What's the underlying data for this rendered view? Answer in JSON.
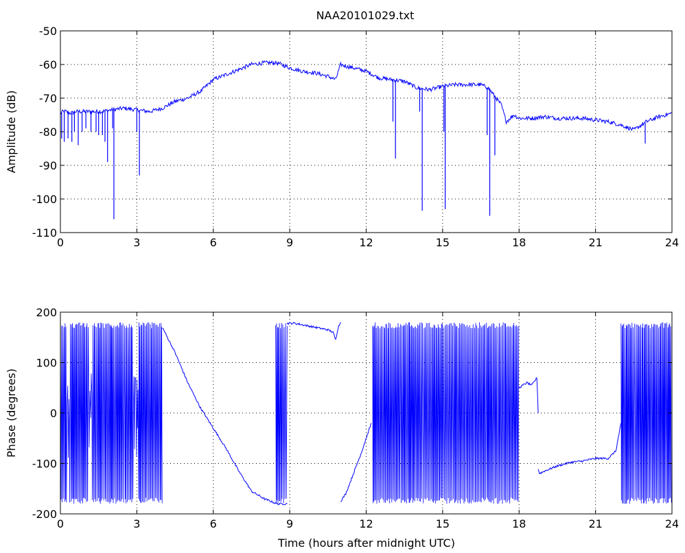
{
  "figure": {
    "title": "NAA20101029.txt",
    "xlabel": "Time (hours after midnight UTC)"
  },
  "colors": {
    "line": "#0000ff",
    "axes": "#000000",
    "grid": "#000000",
    "background": "#ffffff"
  },
  "chart_data": [
    {
      "type": "line",
      "title": "NAA20101029.txt",
      "xlabel": "",
      "ylabel": "Amplitude (dB)",
      "xlim": [
        0,
        24
      ],
      "ylim": [
        -110,
        -50
      ],
      "xticks": [
        0,
        3,
        6,
        9,
        12,
        15,
        18,
        21,
        24
      ],
      "yticks": [
        -110,
        -100,
        -90,
        -80,
        -70,
        -60,
        -50
      ],
      "grid": true,
      "series": [
        {
          "x": [
            0,
            0.1,
            0.2,
            0.4,
            0.6,
            0.8,
            1.0,
            1.3,
            1.6,
            2.0,
            2.5,
            3.0,
            3.5,
            4.0,
            4.5,
            5.0,
            5.5,
            6.0,
            6.5,
            7.0,
            7.5,
            8.0,
            8.5,
            9.0,
            9.5,
            10.0,
            10.5,
            10.8,
            11.0,
            11.2,
            11.5,
            12.0,
            12.5,
            13.0,
            13.5,
            14.0,
            14.5,
            15.0,
            15.5,
            16.0,
            16.5,
            16.8,
            17.0,
            17.3,
            17.5,
            17.8,
            18.0,
            18.5,
            19.0,
            19.5,
            20.0,
            20.5,
            21.0,
            21.5,
            22.0,
            22.5,
            23.0,
            23.5,
            24.0
          ],
          "y": [
            -74.5,
            -74,
            -74,
            -74.5,
            -74,
            -74,
            -74,
            -74,
            -74,
            -73.5,
            -73,
            -73.5,
            -74,
            -73,
            -71,
            -70,
            -68,
            -64.5,
            -63,
            -61.5,
            -60,
            -59.5,
            -59.5,
            -61,
            -62,
            -62.5,
            -63.5,
            -64.5,
            -60,
            -60.5,
            -61,
            -62,
            -64,
            -64.5,
            -65,
            -67,
            -67.5,
            -66.5,
            -66,
            -66,
            -66,
            -67,
            -69,
            -72,
            -77,
            -75,
            -76,
            -76,
            -75.5,
            -76,
            -76,
            -76,
            -76.5,
            -77,
            -78,
            -79.5,
            -77,
            -75.5,
            -74.5
          ]
        }
      ],
      "spikes": [
        {
          "x": 0.05,
          "y": -82
        },
        {
          "x": 0.15,
          "y": -83
        },
        {
          "x": 0.3,
          "y": -82
        },
        {
          "x": 0.45,
          "y": -83
        },
        {
          "x": 0.55,
          "y": -80
        },
        {
          "x": 0.7,
          "y": -84
        },
        {
          "x": 0.85,
          "y": -80
        },
        {
          "x": 1.0,
          "y": -79
        },
        {
          "x": 1.2,
          "y": -80
        },
        {
          "x": 1.4,
          "y": -80
        },
        {
          "x": 1.5,
          "y": -81
        },
        {
          "x": 1.65,
          "y": -81
        },
        {
          "x": 1.75,
          "y": -83
        },
        {
          "x": 1.85,
          "y": -89
        },
        {
          "x": 2.05,
          "y": -79
        },
        {
          "x": 2.1,
          "y": -106
        },
        {
          "x": 3.0,
          "y": -80
        },
        {
          "x": 3.1,
          "y": -93
        },
        {
          "x": 13.05,
          "y": -77
        },
        {
          "x": 13.15,
          "y": -88
        },
        {
          "x": 14.1,
          "y": -74
        },
        {
          "x": 14.2,
          "y": -103.5
        },
        {
          "x": 15.1,
          "y": -103
        },
        {
          "x": 15.05,
          "y": -80
        },
        {
          "x": 16.75,
          "y": -81
        },
        {
          "x": 16.85,
          "y": -105
        },
        {
          "x": 17.05,
          "y": -87
        },
        {
          "x": 22.95,
          "y": -83.5
        }
      ]
    },
    {
      "type": "line",
      "title": "",
      "xlabel": "Time (hours after midnight UTC)",
      "ylabel": "Phase (degrees)",
      "xlim": [
        0,
        24
      ],
      "ylim": [
        -200,
        200
      ],
      "xticks": [
        0,
        3,
        6,
        9,
        12,
        15,
        18,
        21,
        24
      ],
      "yticks": [
        -200,
        -100,
        0,
        100,
        200
      ],
      "grid": true,
      "wrapped_segments": [
        {
          "x": [
            0,
            4.0
          ],
          "low": -180,
          "high": 180,
          "gaps": [
            [
              0.25,
              0.35
            ],
            [
              1.1,
              1.25
            ],
            [
              2.85,
              3.05
            ]
          ]
        },
        {
          "x": [
            8.45,
            8.9
          ],
          "low": -180,
          "high": 180,
          "gaps": []
        },
        {
          "x": [
            12.25,
            18.0
          ],
          "low": -180,
          "high": 180,
          "gaps": []
        },
        {
          "x": [
            22.0,
            24.0
          ],
          "low": -180,
          "high": 180,
          "gaps": []
        }
      ],
      "series": [
        {
          "x": [
            4.0,
            4.5,
            5.0,
            5.5,
            6.0,
            6.5,
            7.0,
            7.5,
            8.0,
            8.5,
            8.9
          ],
          "y": [
            170,
            120,
            60,
            10,
            -30,
            -70,
            -115,
            -155,
            -170,
            -180,
            -180
          ]
        },
        {
          "x": [
            8.9,
            9.2,
            9.5,
            10.0,
            10.5,
            10.7,
            10.8,
            10.9,
            11.0
          ],
          "y": [
            178,
            178,
            175,
            170,
            165,
            160,
            145,
            170,
            180
          ]
        },
        {
          "x": [
            11.0,
            11.2,
            11.5,
            11.8,
            12.0,
            12.2
          ],
          "y": [
            -175,
            -160,
            -120,
            -80,
            -50,
            -20
          ]
        },
        {
          "x": [
            18.0,
            18.3,
            18.5,
            18.7,
            18.75
          ],
          "y": [
            50,
            60,
            55,
            70,
            0
          ]
        },
        {
          "x": [
            18.75,
            18.8,
            19.0,
            19.5,
            20.0,
            20.5,
            21.0,
            21.5,
            21.8,
            22.0
          ],
          "y": [
            -110,
            -120,
            -115,
            -105,
            -98,
            -95,
            -90,
            -90,
            -75,
            -20
          ]
        }
      ]
    }
  ]
}
